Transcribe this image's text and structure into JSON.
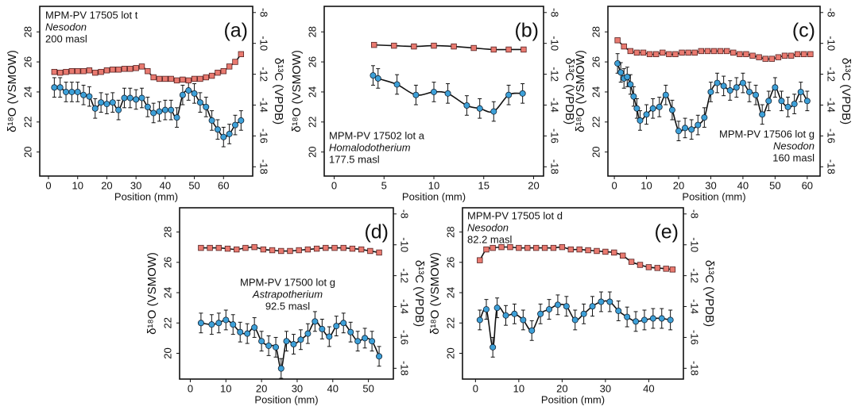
{
  "chart_data": [
    {
      "type": "scatter",
      "panel_label": "(a)",
      "annotation": [
        "MPM-PV 17505 lot t",
        "Nesodon",
        "200 masl"
      ],
      "xlabel": "Position (mm)",
      "ylabel": "δ¹⁸O (VSMOW)",
      "y2label": "δ¹³C (VPDB)",
      "xlim": [
        -3,
        70
      ],
      "xticks": [
        0,
        10,
        20,
        30,
        40,
        50,
        60
      ],
      "ylim": [
        18.4,
        29.7
      ],
      "yticks": [
        20,
        22,
        24,
        26,
        28
      ],
      "y2lim": [
        -18.6,
        -7.6
      ],
      "y2ticks": [
        -18,
        -16,
        -14,
        -12,
        -10,
        -8
      ],
      "series": [
        {
          "color": "#3da0d8",
          "error": 0.65,
          "x": [
            2,
            4,
            6,
            8,
            10,
            12,
            14,
            16,
            18,
            20,
            22,
            24,
            26,
            28,
            30,
            32,
            34,
            36,
            38,
            40,
            42,
            44,
            46,
            48,
            50,
            52,
            54,
            56,
            58,
            60,
            62,
            64,
            66
          ],
          "values": [
            24.3,
            24.3,
            24.0,
            24.0,
            24.0,
            23.8,
            23.7,
            22.9,
            23.3,
            23.2,
            23.3,
            22.8,
            23.6,
            23.6,
            23.5,
            23.6,
            23.0,
            22.6,
            22.7,
            22.8,
            22.8,
            22.3,
            23.8,
            24.1,
            23.9,
            23.3,
            23.0,
            22.1,
            21.5,
            21.0,
            21.2,
            21.8,
            22.1
          ]
        },
        {
          "color": "#e97a70",
          "axis": "y2",
          "x": [
            2,
            4,
            6,
            8,
            10,
            12,
            14,
            16,
            18,
            20,
            22,
            24,
            26,
            28,
            30,
            32,
            34,
            36,
            38,
            40,
            42,
            44,
            46,
            48,
            50,
            52,
            54,
            56,
            58,
            60,
            62,
            64,
            66
          ],
          "values": [
            -11.85,
            -11.9,
            -11.85,
            -11.8,
            -11.8,
            -11.8,
            -11.75,
            -11.9,
            -11.85,
            -11.75,
            -11.7,
            -11.7,
            -11.65,
            -11.65,
            -11.6,
            -11.5,
            -11.8,
            -12.2,
            -12.3,
            -12.3,
            -12.3,
            -12.4,
            -12.35,
            -12.4,
            -12.3,
            -12.3,
            -12.2,
            -12.1,
            -11.9,
            -11.8,
            -11.5,
            -11.2,
            -10.7
          ]
        }
      ]
    },
    {
      "type": "scatter",
      "panel_label": "(b)",
      "annotation": [
        "MPM-PV 17502 lot a",
        "Homalodotherium",
        "177.5 masl"
      ],
      "xlabel": "Position (mm)",
      "ylabel": "δ¹⁸O (VSMOW)",
      "y2label": "δ¹³C (VPDB)",
      "xlim": [
        -1,
        21
      ],
      "xticks": [
        0,
        5,
        10,
        15,
        20
      ],
      "ylim": [
        18.4,
        29.7
      ],
      "yticks": [
        20,
        22,
        24,
        26,
        28
      ],
      "y2lim": [
        -18.6,
        -7.6
      ],
      "y2ticks": [
        -18,
        -16,
        -14,
        -12,
        -10,
        -8
      ],
      "series": [
        {
          "color": "#3da0d8",
          "error": 0.65,
          "x": [
            3.9,
            4.4,
            6.3,
            8.2,
            10,
            11.4,
            13.3,
            14.6,
            16,
            17.5,
            18.9
          ],
          "values": [
            25.1,
            24.9,
            24.5,
            23.8,
            24.0,
            23.9,
            23.1,
            22.9,
            22.7,
            23.8,
            23.9
          ]
        },
        {
          "color": "#e97a70",
          "axis": "y2",
          "x": [
            4,
            6,
            8,
            10,
            12,
            14,
            16,
            17.5,
            19
          ],
          "values": [
            -10.1,
            -10.15,
            -10.2,
            -10.15,
            -10.2,
            -10.3,
            -10.4,
            -10.4,
            -10.4
          ]
        }
      ]
    },
    {
      "type": "scatter",
      "panel_label": "(c)",
      "annotation": [
        "MPM-PV 17506 lot g",
        "Nesodon",
        "160 masl"
      ],
      "xlabel": "Position (mm)",
      "ylabel": "δ¹⁸O (VSMOW)",
      "y2label": "δ¹³C (VPDB)",
      "xlim": [
        -2,
        64
      ],
      "xticks": [
        0,
        10,
        20,
        30,
        40,
        50,
        60
      ],
      "ylim": [
        18.4,
        29.7
      ],
      "yticks": [
        20,
        22,
        24,
        26,
        28
      ],
      "y2lim": [
        -18.6,
        -7.6
      ],
      "y2ticks": [
        -18,
        -16,
        -14,
        -12,
        -10,
        -8
      ],
      "series": [
        {
          "color": "#3da0d8",
          "error": 0.65,
          "x": [
            1,
            2,
            3,
            4,
            5,
            6,
            7,
            8,
            10,
            12,
            14,
            16,
            18,
            20,
            22,
            24,
            26,
            28,
            30,
            32,
            34,
            36,
            38,
            40,
            42,
            44,
            46,
            48,
            50,
            52,
            54,
            56,
            58,
            60
          ],
          "values": [
            25.9,
            25.3,
            24.9,
            25.0,
            24.5,
            23.7,
            22.9,
            22.1,
            22.5,
            22.9,
            23.0,
            23.8,
            22.8,
            21.4,
            21.6,
            21.5,
            21.8,
            22.3,
            24.0,
            24.6,
            24.4,
            24.1,
            24.3,
            24.6,
            24.0,
            23.8,
            22.5,
            23.4,
            24.3,
            23.4,
            23.0,
            23.2,
            24.0,
            23.4
          ]
        },
        {
          "color": "#e97a70",
          "axis": "y2",
          "x": [
            1,
            3,
            5,
            7,
            9,
            11,
            13,
            15,
            17,
            19,
            21,
            23,
            25,
            27,
            29,
            31,
            33,
            35,
            37,
            39,
            41,
            43,
            45,
            47,
            49,
            51,
            53,
            55,
            57,
            59,
            61
          ],
          "values": [
            -9.8,
            -10.2,
            -10.5,
            -10.6,
            -10.6,
            -10.7,
            -10.7,
            -10.6,
            -10.7,
            -10.7,
            -10.6,
            -10.6,
            -10.6,
            -10.5,
            -10.5,
            -10.5,
            -10.5,
            -10.5,
            -10.6,
            -10.7,
            -10.7,
            -10.8,
            -10.9,
            -11.0,
            -11.0,
            -10.9,
            -10.8,
            -10.8,
            -10.7,
            -10.7,
            -10.7
          ]
        }
      ]
    },
    {
      "type": "scatter",
      "panel_label": "(d)",
      "annotation": [
        "MPM-PV 17500 lot g",
        "Astrapotherium",
        "92.5 masl"
      ],
      "xlabel": "Position (mm)",
      "ylabel": "δ¹⁸O (VSMOW)",
      "y2label": "δ¹³C (VPDB)",
      "xlim": [
        -3,
        57
      ],
      "xticks": [
        0,
        10,
        20,
        30,
        40,
        50
      ],
      "ylim": [
        18.3,
        29.6
      ],
      "yticks": [
        20,
        22,
        24,
        26,
        28
      ],
      "y2lim": [
        -18.7,
        -7.6
      ],
      "y2ticks": [
        -18,
        -16,
        -14,
        -12,
        -10,
        -8
      ],
      "series": [
        {
          "color": "#3da0d8",
          "error": 0.65,
          "x": [
            3,
            6,
            8,
            10,
            12,
            14,
            16,
            18,
            20,
            22,
            24,
            25.5,
            27,
            29,
            31,
            33,
            35,
            37,
            39,
            41,
            43,
            45,
            47,
            49,
            51,
            53
          ],
          "values": [
            22.0,
            21.9,
            22.0,
            22.2,
            21.9,
            21.4,
            21.3,
            21.7,
            20.8,
            20.5,
            20.4,
            19.0,
            20.8,
            20.6,
            20.9,
            21.3,
            22.1,
            21.6,
            21.1,
            21.8,
            22.0,
            21.4,
            20.8,
            21.0,
            20.8,
            19.8
          ]
        },
        {
          "color": "#e97a70",
          "axis": "y2",
          "x": [
            3,
            5.5,
            8,
            10.5,
            13,
            15.5,
            18,
            20.5,
            23,
            25.5,
            28,
            30.5,
            33,
            35.5,
            38,
            40.5,
            43,
            45.5,
            48,
            50.5,
            53
          ],
          "values": [
            -10.2,
            -10.2,
            -10.2,
            -10.25,
            -10.3,
            -10.2,
            -10.15,
            -10.3,
            -10.35,
            -10.4,
            -10.4,
            -10.35,
            -10.3,
            -10.25,
            -10.2,
            -10.2,
            -10.2,
            -10.25,
            -10.3,
            -10.4,
            -10.5
          ]
        }
      ]
    },
    {
      "type": "scatter",
      "panel_label": "(e)",
      "annotation": [
        "MPM-PV 17505 lot d",
        "Nesodon",
        "82.2 masl"
      ],
      "xlabel": "Position (mm)",
      "ylabel": "δ¹⁸O (VSMOW)",
      "y2label": "δ¹³C (VPDB)",
      "xlim": [
        -3,
        48
      ],
      "xticks": [
        0,
        10,
        20,
        30,
        40
      ],
      "ylim": [
        18.3,
        29.6
      ],
      "yticks": [
        20,
        22,
        24,
        26,
        28
      ],
      "y2lim": [
        -18.7,
        -7.6
      ],
      "y2ticks": [
        -18,
        -16,
        -14,
        -12,
        -10,
        -8
      ],
      "series": [
        {
          "color": "#3da0d8",
          "error": 0.65,
          "x": [
            1,
            2.5,
            4,
            5,
            7,
            9,
            11,
            13,
            15,
            17,
            19,
            21,
            23,
            25,
            27,
            29,
            31,
            33,
            35,
            37,
            39,
            41,
            43,
            45
          ],
          "values": [
            22.2,
            22.9,
            20.4,
            23.0,
            22.5,
            22.6,
            22.2,
            21.5,
            22.6,
            22.9,
            23.2,
            23.1,
            22.2,
            22.6,
            23.1,
            23.4,
            23.4,
            22.8,
            22.4,
            22.1,
            22.2,
            22.3,
            22.3,
            22.2
          ]
        },
        {
          "color": "#e97a70",
          "axis": "y2",
          "x": [
            1,
            2.5,
            4,
            6,
            8,
            10,
            12,
            14,
            16,
            18,
            20,
            22,
            24,
            26,
            28,
            30,
            32,
            34,
            36,
            38,
            40,
            42,
            44,
            45.5
          ],
          "values": [
            -11.0,
            -10.3,
            -10.2,
            -10.15,
            -10.15,
            -10.2,
            -10.2,
            -10.2,
            -10.2,
            -10.2,
            -10.15,
            -10.3,
            -10.3,
            -10.35,
            -10.4,
            -10.45,
            -10.5,
            -10.7,
            -11.1,
            -11.3,
            -11.45,
            -11.5,
            -11.55,
            -11.6
          ]
        }
      ]
    }
  ]
}
